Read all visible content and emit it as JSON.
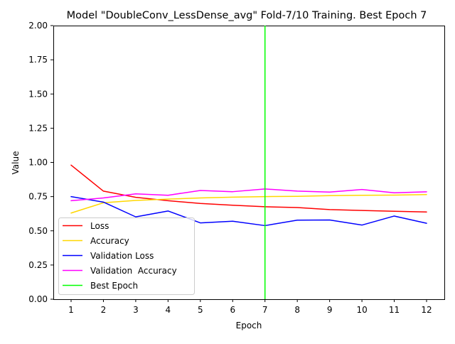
{
  "chart_data": {
    "type": "line",
    "title": "Model \"DoubleConv_LessDense_avg\" Fold-7/10 Training. Best Epoch 7",
    "xlabel": "Epoch",
    "ylabel": "Value",
    "x": [
      1,
      2,
      3,
      4,
      5,
      6,
      7,
      8,
      9,
      10,
      11,
      12
    ],
    "xlim": [
      0.45,
      12.55
    ],
    "ylim": [
      0,
      2
    ],
    "x_ticks": [
      "1",
      "2",
      "3",
      "4",
      "5",
      "6",
      "7",
      "8",
      "9",
      "10",
      "11",
      "12"
    ],
    "y_ticks": [
      "0.00",
      "0.25",
      "0.50",
      "0.75",
      "1.00",
      "1.25",
      "1.50",
      "1.75",
      "2.00"
    ],
    "grid": false,
    "legend_position": "lower-left",
    "series": [
      {
        "name": "Loss",
        "color": "#ff0000",
        "values": [
          0.98,
          0.79,
          0.745,
          0.72,
          0.7,
          0.687,
          0.676,
          0.67,
          0.655,
          0.649,
          0.643,
          0.638
        ]
      },
      {
        "name": "Accuracy",
        "color": "#ffd700",
        "values": [
          0.63,
          0.705,
          0.722,
          0.732,
          0.74,
          0.746,
          0.75,
          0.752,
          0.757,
          0.76,
          0.761,
          0.765
        ]
      },
      {
        "name": "Validation Loss",
        "color": "#0000ff",
        "values": [
          0.75,
          0.71,
          0.602,
          0.645,
          0.558,
          0.57,
          0.538,
          0.578,
          0.579,
          0.542,
          0.608,
          0.555
        ]
      },
      {
        "name": "Validation  Accuracy",
        "color": "#ff00ff",
        "values": [
          0.72,
          0.74,
          0.77,
          0.76,
          0.795,
          0.786,
          0.806,
          0.79,
          0.783,
          0.802,
          0.778,
          0.785
        ]
      }
    ],
    "best_epoch": {
      "name": "Best Epoch",
      "x": 7,
      "color": "#00ff00"
    }
  }
}
